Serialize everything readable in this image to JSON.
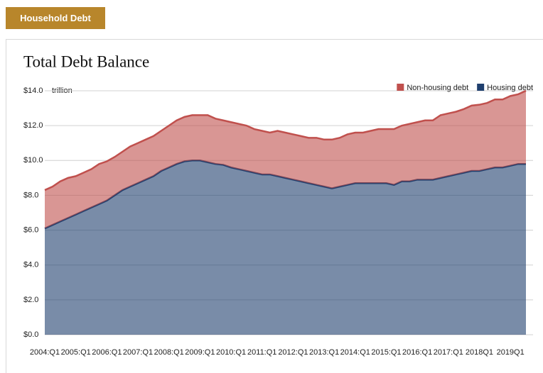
{
  "header": {
    "title": "Household Debt"
  },
  "chart_data": {
    "type": "stacked-area",
    "title": "Total Debt Balance",
    "unit_label": "trillion",
    "categories": [
      "2004:Q1",
      null,
      null,
      null,
      "2005:Q1",
      null,
      null,
      null,
      "2006:Q1",
      null,
      null,
      null,
      "2007:Q1",
      null,
      null,
      null,
      "2008:Q1",
      null,
      null,
      null,
      "2009:Q1",
      null,
      null,
      null,
      "2010:Q1",
      null,
      null,
      null,
      "2011:Q1",
      null,
      null,
      null,
      "2012:Q1",
      null,
      null,
      null,
      "2013:Q1",
      null,
      null,
      null,
      "2014:Q1",
      null,
      null,
      null,
      "2015:Q1",
      null,
      null,
      null,
      "2016:Q1",
      null,
      null,
      null,
      "2017:Q1",
      null,
      null,
      null,
      "2018Q1",
      null,
      null,
      null,
      "2019Q1",
      null,
      null
    ],
    "series": [
      {
        "name": "Non-housing debt",
        "color": "#c0504d",
        "values": [
          2.2,
          2.2,
          2.3,
          2.3,
          2.2,
          2.2,
          2.2,
          2.3,
          2.25,
          2.2,
          2.2,
          2.3,
          2.3,
          2.3,
          2.3,
          2.3,
          2.4,
          2.5,
          2.55,
          2.6,
          2.6,
          2.7,
          2.6,
          2.55,
          2.6,
          2.6,
          2.6,
          2.5,
          2.5,
          2.4,
          2.6,
          2.6,
          2.6,
          2.6,
          2.6,
          2.7,
          2.7,
          2.8,
          2.8,
          2.9,
          2.9,
          2.9,
          3.0,
          3.1,
          3.1,
          3.2,
          3.2,
          3.3,
          3.3,
          3.4,
          3.4,
          3.6,
          3.6,
          3.6,
          3.65,
          3.75,
          3.8,
          3.8,
          3.9,
          3.9,
          4.0,
          4.0,
          4.2
        ]
      },
      {
        "name": "Housing debt",
        "color": "#1f3f6e",
        "values": [
          6.1,
          6.3,
          6.5,
          6.7,
          6.9,
          7.1,
          7.3,
          7.5,
          7.7,
          8.0,
          8.3,
          8.5,
          8.7,
          8.9,
          9.1,
          9.4,
          9.6,
          9.8,
          9.95,
          10.0,
          10.0,
          9.9,
          9.8,
          9.75,
          9.6,
          9.5,
          9.4,
          9.3,
          9.2,
          9.2,
          9.1,
          9.0,
          8.9,
          8.8,
          8.7,
          8.6,
          8.5,
          8.4,
          8.5,
          8.6,
          8.7,
          8.7,
          8.7,
          8.7,
          8.7,
          8.6,
          8.8,
          8.8,
          8.9,
          8.9,
          8.9,
          9.0,
          9.1,
          9.2,
          9.3,
          9.4,
          9.4,
          9.5,
          9.6,
          9.6,
          9.7,
          9.8,
          9.8
        ]
      }
    ],
    "ylim": [
      0,
      14
    ],
    "yticks": [
      {
        "value": 0,
        "label": "$0.0"
      },
      {
        "value": 2,
        "label": "$2.0"
      },
      {
        "value": 4,
        "label": "$4.0"
      },
      {
        "value": 6,
        "label": "$6.0"
      },
      {
        "value": 8,
        "label": "$8.0"
      },
      {
        "value": 10,
        "label": "$10.0"
      },
      {
        "value": 12,
        "label": "$12.0"
      },
      {
        "value": 14,
        "label": "$14.0"
      }
    ],
    "grid": true,
    "legend": "top-right"
  }
}
